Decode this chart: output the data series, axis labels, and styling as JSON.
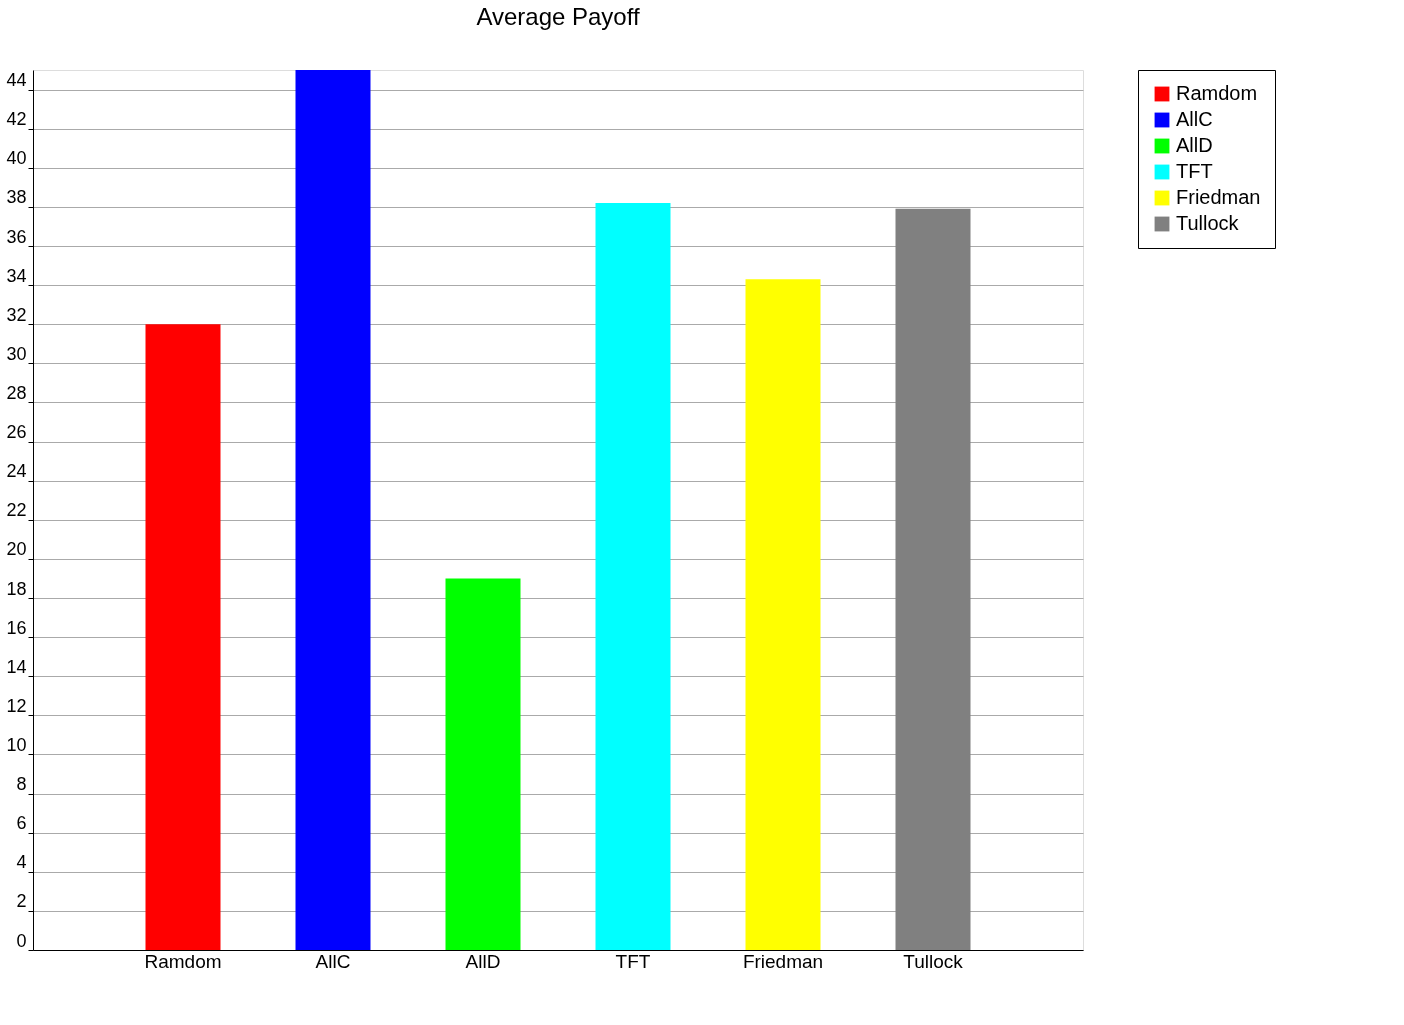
{
  "chart_data": {
    "type": "bar",
    "title": "Average Payoff",
    "categories": [
      "Ramdom",
      "AllC",
      "AllD",
      "TFT",
      "Friedman",
      "Tullock"
    ],
    "series": [
      {
        "name": "Ramdom",
        "color": "#ff0000",
        "values": [
          32,
          null,
          null,
          null,
          null,
          null
        ]
      },
      {
        "name": "AllC",
        "color": "#0000ff",
        "values": [
          null,
          45,
          null,
          null,
          null,
          null
        ]
      },
      {
        "name": "AllD",
        "color": "#00ff00",
        "values": [
          null,
          null,
          19,
          null,
          null,
          null
        ]
      },
      {
        "name": "TFT",
        "color": "#00ffff",
        "values": [
          null,
          null,
          null,
          38.2,
          null,
          null
        ]
      },
      {
        "name": "Friedman",
        "color": "#ffff00",
        "values": [
          null,
          null,
          null,
          null,
          34.3,
          null
        ]
      },
      {
        "name": "Tullock",
        "color": "#808080",
        "values": [
          null,
          null,
          null,
          null,
          null,
          37.9
        ]
      }
    ],
    "ylim": [
      0,
      45
    ],
    "yticks": [
      0,
      2,
      4,
      6,
      8,
      10,
      12,
      14,
      16,
      18,
      20,
      22,
      24,
      26,
      28,
      30,
      32,
      34,
      36,
      38,
      40,
      42,
      44
    ],
    "grid": "y",
    "legend": "right"
  }
}
